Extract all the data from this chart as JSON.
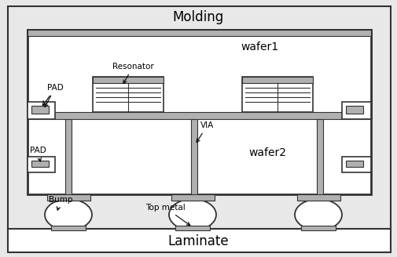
{
  "bg_color": "#e8e8e8",
  "white": "#ffffff",
  "black": "#000000",
  "dark_gray": "#333333",
  "light_gray": "#b0b0b0",
  "med_gray": "#888888",
  "molding_label": "Molding",
  "laminate_label": "Laminate",
  "wafer1_label": "wafer1",
  "wafer2_label": "wafer2",
  "pad_label1": "PAD",
  "pad_label2": "PAD",
  "resonator_label": "Resonator",
  "via_label": "VIA",
  "bump_label": "Bump",
  "top_metal_label": "Top metal",
  "title_fontsize": 12,
  "label_fontsize": 7.5,
  "wafer_fontsize": 10
}
